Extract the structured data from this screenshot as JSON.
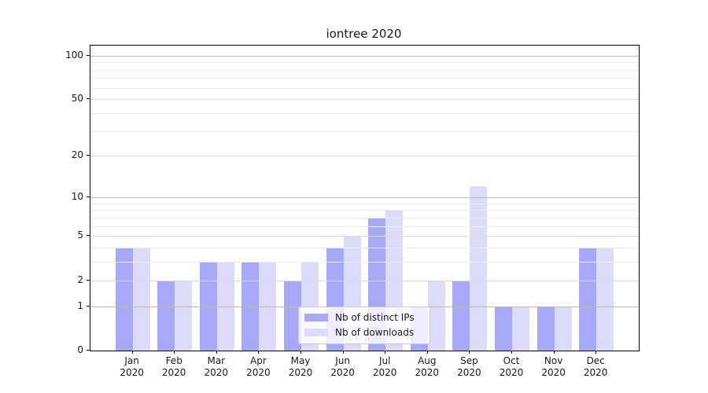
{
  "title": "iontree 2020",
  "chart_data": {
    "type": "bar",
    "title": "iontree 2020",
    "categories": [
      "Jan",
      "Feb",
      "Mar",
      "Apr",
      "May",
      "Jun",
      "Jul",
      "Aug",
      "Sep",
      "Oct",
      "Nov",
      "Dec"
    ],
    "category_year": "2020",
    "series": [
      {
        "name": "Nb of distinct IPs",
        "color": "#a8a8f8",
        "values": [
          4,
          2,
          3,
          3,
          2,
          4,
          7,
          1,
          2,
          1,
          1,
          4
        ]
      },
      {
        "name": "Nb of downloads",
        "color": "#dcdcfa",
        "values": [
          4,
          2,
          3,
          3,
          3,
          5,
          8,
          2,
          12,
          1,
          1,
          4
        ]
      }
    ],
    "xlabel": "",
    "ylabel": "",
    "y_scale": "log1p",
    "y_ticks": [
      0,
      1,
      2,
      5,
      10,
      20,
      50,
      100
    ],
    "y_major_ticks": [
      1,
      10,
      100
    ],
    "y_minor_gridlines": [
      3,
      4,
      6,
      7,
      8,
      9,
      30,
      40,
      60,
      70,
      80,
      90
    ],
    "ylim": [
      0,
      117
    ],
    "grid": true,
    "grid_over_bars": true,
    "legend_position": "lower center inside",
    "colors": {
      "grid_major": "#b9b9b9",
      "grid_labeled": "#dcdcdc",
      "grid_minor": "#ededed",
      "axis": "#000000",
      "text": "#1a1a1a",
      "legend_border": "#cccccc",
      "background": "#ffffff"
    }
  }
}
